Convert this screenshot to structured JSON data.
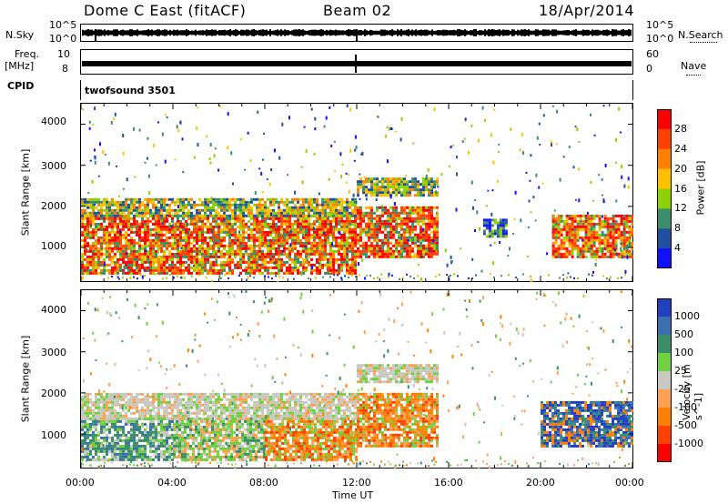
{
  "header": {
    "station": "Dome C East (fitACF)",
    "beam": "Beam 02",
    "date": "18/Apr/2014"
  },
  "top_strips": {
    "nsky_label": "N.Sky",
    "nsearch_label": "N.Search",
    "freq_label_1": "Freq.",
    "freq_label_2": "[MHz]",
    "nave_label": "Nave",
    "cpid_label": "CPID",
    "cpid_value": "twofsound 3501",
    "nsky_ticks": [
      "10^5",
      "10^0"
    ],
    "nsearch_ticks": [
      "10^5",
      "10^0"
    ],
    "freq_ticks": [
      "10",
      "8"
    ],
    "nave_ticks": [
      "60",
      "0"
    ]
  },
  "chart_data": [
    {
      "type": "heatmap",
      "name": "power",
      "ylabel": "Slant Range [km]",
      "xlabel": "",
      "ylim": [
        180,
        4500
      ],
      "yticks": [
        1000,
        2000,
        3000,
        4000
      ],
      "xlim_hours": [
        0,
        24
      ],
      "colorbar": {
        "label": "Power [dB]",
        "ticks": [
          "28",
          "24",
          "20",
          "16",
          "12",
          "8",
          "4"
        ],
        "colors": [
          "#ff0000",
          "#ff4000",
          "#ff8000",
          "#ffc000",
          "#8fd000",
          "#3a8f6a",
          "#2050a0",
          "#1010ff"
        ]
      },
      "echo_regions": [
        {
          "t0": 0.0,
          "t1": 12.0,
          "r0": 400,
          "r1": 1800,
          "level": "high"
        },
        {
          "t0": 0.0,
          "t1": 12.0,
          "r0": 1800,
          "r1": 2200,
          "level": "mid"
        },
        {
          "t0": 12.0,
          "t1": 15.5,
          "r0": 800,
          "r1": 2000,
          "level": "high"
        },
        {
          "t0": 12.0,
          "t1": 15.5,
          "r0": 2300,
          "r1": 2700,
          "level": "mid"
        },
        {
          "t0": 17.5,
          "t1": 18.5,
          "r0": 1300,
          "r1": 1700,
          "level": "low"
        },
        {
          "t0": 20.5,
          "t1": 24.0,
          "r0": 800,
          "r1": 1800,
          "level": "high"
        }
      ]
    },
    {
      "type": "heatmap",
      "name": "velocity",
      "ylabel": "Slant Range [km]",
      "xlabel": "Time UT",
      "ylim": [
        180,
        4500
      ],
      "yticks": [
        1000,
        2000,
        3000,
        4000
      ],
      "xticks": [
        "00:00",
        "04:00",
        "08:00",
        "12:00",
        "16:00",
        "20:00",
        "00:00"
      ],
      "colorbar": {
        "label": "Velocity [m s^-1]",
        "ticks": [
          "1000",
          "500",
          "100",
          "25",
          "-25",
          "-100",
          "-500",
          "-1000"
        ],
        "colors": [
          "#2040c0",
          "#3a6fb0",
          "#3a8f6a",
          "#70d040",
          "#c8c8c0",
          "#ffa050",
          "#ff8000",
          "#ff4000",
          "#ff0000"
        ]
      },
      "echo_regions": [
        {
          "t0": 0.0,
          "t1": 4.0,
          "r0": 400,
          "r1": 1400,
          "level": "teal"
        },
        {
          "t0": 4.0,
          "t1": 8.0,
          "r0": 400,
          "r1": 1400,
          "level": "green"
        },
        {
          "t0": 8.0,
          "t1": 12.0,
          "r0": 400,
          "r1": 1400,
          "level": "orange"
        },
        {
          "t0": 0.0,
          "t1": 12.0,
          "r0": 1400,
          "r1": 2000,
          "level": "grey"
        },
        {
          "t0": 12.0,
          "t1": 15.5,
          "r0": 700,
          "r1": 2000,
          "level": "orange"
        },
        {
          "t0": 12.0,
          "t1": 15.5,
          "r0": 2300,
          "r1": 2700,
          "level": "grey"
        },
        {
          "t0": 20.0,
          "t1": 24.0,
          "r0": 700,
          "r1": 1800,
          "level": "blue"
        }
      ]
    }
  ]
}
